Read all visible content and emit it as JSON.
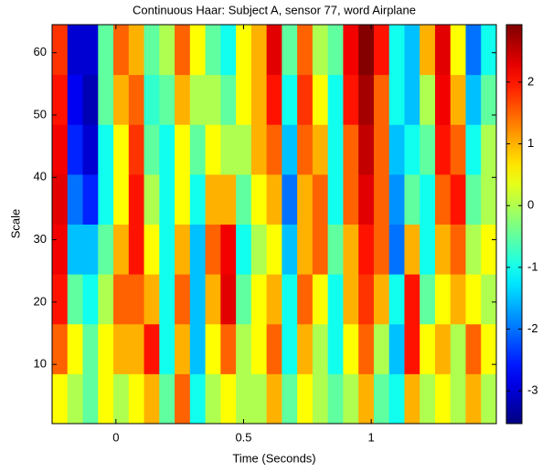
{
  "chart_data": {
    "type": "heatmap",
    "title": "Continuous Haar: Subject A, sensor 77, word Airplane",
    "x_label": "Time (Seconds)",
    "y_label": "Scale",
    "colormap": "jet",
    "x_edges": [
      -0.25,
      -0.19,
      -0.13,
      -0.07,
      -0.01,
      0.05,
      0.11,
      0.17,
      0.23,
      0.29,
      0.35,
      0.41,
      0.47,
      0.53,
      0.59,
      0.65,
      0.71,
      0.77,
      0.83,
      0.89,
      0.95,
      1.01,
      1.07,
      1.13,
      1.19,
      1.25,
      1.31,
      1.37,
      1.43,
      1.49
    ],
    "y_edges": [
      0.5,
      8.5,
      16.5,
      24.5,
      32.5,
      40.5,
      48.5,
      56.5,
      64.5
    ],
    "z": [
      [
        0.5,
        0,
        -0.5,
        0.5,
        0,
        0.5,
        1,
        -0.5,
        1.5,
        -1,
        0,
        0.5,
        0,
        0,
        1,
        -0.5,
        0.5,
        0,
        -0.5,
        0,
        1,
        -0.5,
        -1,
        1,
        0,
        0.5,
        0,
        1,
        0
      ],
      [
        1.5,
        0.5,
        -0.5,
        0.5,
        1,
        1,
        2,
        -1,
        1,
        -1.5,
        0.5,
        1.5,
        0,
        0.5,
        1.5,
        -1,
        1,
        0,
        -1,
        0.5,
        1.5,
        0,
        -1.5,
        2,
        0.5,
        1,
        0,
        1.5,
        0.5
      ],
      [
        2,
        -0.5,
        -1,
        0,
        1.5,
        1.5,
        1,
        -1,
        1.5,
        -1.5,
        1,
        2.3,
        -0.5,
        0.5,
        1,
        -1,
        1.5,
        0.5,
        -1,
        1,
        1.8,
        1,
        -1,
        2,
        -0.5,
        0.5,
        1,
        0.5,
        0
      ],
      [
        2.2,
        -1.5,
        -1.5,
        -0.5,
        1,
        2,
        0.5,
        -1,
        1,
        -1.5,
        1.5,
        2.2,
        -1,
        0,
        0.5,
        -1.5,
        1,
        1.5,
        -0.5,
        1,
        2,
        1.5,
        -2,
        1,
        -1,
        1,
        1.5,
        0,
        0.5
      ],
      [
        2.3,
        -2,
        -2.5,
        -1,
        0.5,
        2,
        0,
        -1,
        0.5,
        -1,
        1,
        1,
        -0.5,
        0.5,
        1,
        -2,
        1,
        1.5,
        -1,
        1.5,
        2.3,
        1.5,
        -1.8,
        -0.5,
        -1,
        1.5,
        2,
        -0.5,
        0
      ],
      [
        2.2,
        -2.5,
        -3,
        -1,
        0.5,
        1.8,
        -0.5,
        -1,
        0.5,
        -0.5,
        0.5,
        0,
        0,
        1,
        1.5,
        -1.5,
        1.5,
        1,
        -1,
        1.5,
        2.5,
        1.5,
        -1.5,
        -1,
        -0.5,
        2,
        1.5,
        -1,
        0
      ],
      [
        2,
        -2.8,
        -3.2,
        -0.5,
        1,
        1.5,
        -0.8,
        -0.5,
        1,
        0,
        0,
        -0.5,
        0.5,
        1,
        2,
        -1,
        1.8,
        0.5,
        -1,
        2,
        2.7,
        1.5,
        -1,
        -1.5,
        0,
        2.2,
        1,
        -1.5,
        -0.5
      ],
      [
        1.8,
        -3,
        -3,
        -0.5,
        1.5,
        1,
        -0.5,
        0,
        1.5,
        0.5,
        -0.5,
        -1,
        0.5,
        1,
        2.3,
        -0.5,
        1.5,
        0,
        -0.5,
        2.2,
        2.9,
        2,
        -1,
        -1.5,
        1,
        2.3,
        0.5,
        -2,
        -1
      ]
    ],
    "xlim": [
      -0.25,
      1.49
    ],
    "xticks": [
      0,
      0.5,
      1
    ],
    "ylim": [
      0.5,
      64.5
    ],
    "yticks": [
      10,
      20,
      30,
      40,
      50,
      60
    ],
    "clim": [
      -3.53,
      2.93
    ],
    "cticks": [
      -3,
      -2,
      -1,
      0,
      1,
      2
    ]
  }
}
